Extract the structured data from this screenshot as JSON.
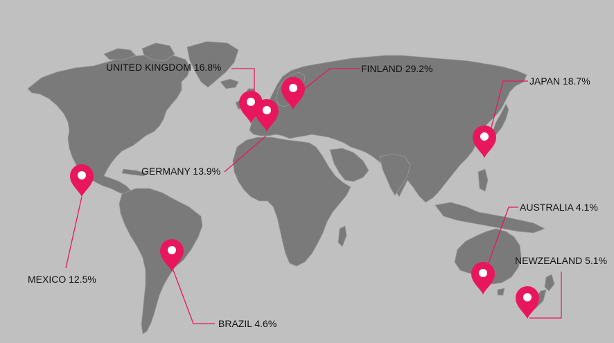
{
  "map": {
    "background": "#c0c0c0",
    "land_color": "#7a7a7a",
    "land_edge_color": "#9a9a9a",
    "marker_color": "#e8175d",
    "leader_color": "#e8175d",
    "marker_icon": "map-pin-icon"
  },
  "markers": [
    {
      "id": "united-kingdom",
      "label": "UNITED KINGDOM 16.8%",
      "country": "UNITED KINGDOM",
      "value": 16.8
    },
    {
      "id": "finland",
      "label": "FINLAND 29.2%",
      "country": "FINLAND",
      "value": 29.2
    },
    {
      "id": "japan",
      "label": "JAPAN 18.7%",
      "country": "JAPAN",
      "value": 18.7
    },
    {
      "id": "germany",
      "label": "GERMANY 13.9%",
      "country": "GERMANY",
      "value": 13.9
    },
    {
      "id": "mexico",
      "label": "MEXICO 12.5%",
      "country": "MEXICO",
      "value": 12.5
    },
    {
      "id": "brazil",
      "label": "BRAZIL 4.6%",
      "country": "BRAZIL",
      "value": 4.6
    },
    {
      "id": "australia",
      "label": "AUSTRALIA 4.1%",
      "country": "AUSTRALIA",
      "value": 4.1
    },
    {
      "id": "new-zealand",
      "label": "NEWZEALAND 5.1%",
      "country": "NEWZEALAND",
      "value": 5.1
    }
  ]
}
